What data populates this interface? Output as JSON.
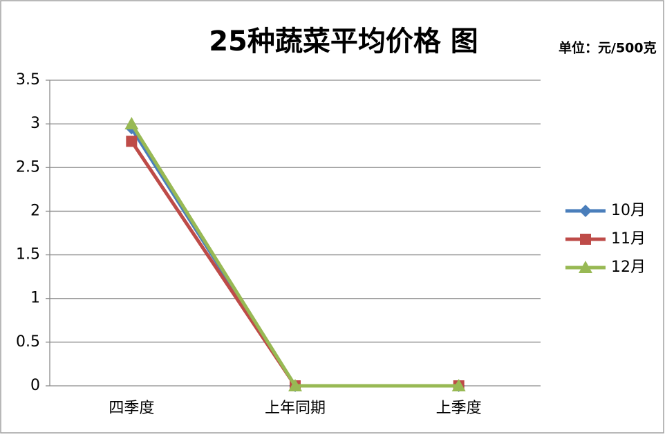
{
  "chart_data": {
    "type": "line",
    "title": "25种蔬菜平均价格 图",
    "subtitle": "单位：元/500克",
    "categories": [
      "四季度",
      "上年同期",
      "上季度"
    ],
    "series": [
      {
        "name": "10月",
        "color": "#4a7ebb",
        "marker": "diamond",
        "values": [
          2.95,
          0,
          0
        ]
      },
      {
        "name": "11月",
        "color": "#be4b48",
        "marker": "square",
        "values": [
          2.8,
          0,
          0
        ]
      },
      {
        "name": "12月",
        "color": "#98b954",
        "marker": "triangle",
        "values": [
          3.0,
          0,
          0
        ]
      }
    ],
    "ylim": [
      0,
      3.5
    ],
    "yticks": [
      0,
      0.5,
      1,
      1.5,
      2,
      2.5,
      3,
      3.5
    ],
    "grid": true,
    "legend": "right"
  }
}
